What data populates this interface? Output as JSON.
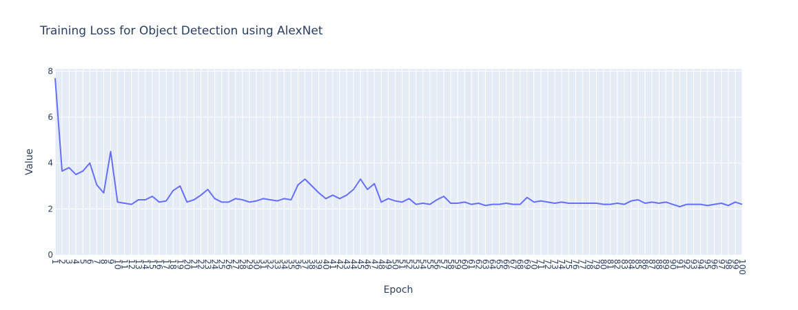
{
  "chart_data": {
    "type": "line",
    "title": "Training Loss for Object Detection using AlexNet",
    "xlabel": "Epoch",
    "ylabel": "Value",
    "xlim": [
      1,
      100
    ],
    "ylim": [
      0,
      8.1
    ],
    "y_ticks": [
      0,
      2,
      4,
      6,
      8
    ],
    "grid": true,
    "legend": "none",
    "colors": {
      "plot_background": "#e5ecf6",
      "grid": "#ffffff",
      "line": "#636efa",
      "text": "#2a3f5f"
    },
    "x": [
      1,
      2,
      3,
      4,
      5,
      6,
      7,
      8,
      9,
      10,
      11,
      12,
      13,
      14,
      15,
      16,
      17,
      18,
      19,
      20,
      21,
      22,
      23,
      24,
      25,
      26,
      27,
      28,
      29,
      30,
      31,
      32,
      33,
      34,
      35,
      36,
      37,
      38,
      39,
      40,
      41,
      42,
      43,
      44,
      45,
      46,
      47,
      48,
      49,
      50,
      51,
      52,
      53,
      54,
      55,
      56,
      57,
      58,
      59,
      60,
      61,
      62,
      63,
      64,
      65,
      66,
      67,
      68,
      69,
      70,
      71,
      72,
      73,
      74,
      75,
      76,
      77,
      78,
      79,
      80,
      81,
      82,
      83,
      84,
      85,
      86,
      87,
      88,
      89,
      90,
      91,
      92,
      93,
      94,
      95,
      96,
      97,
      98,
      99,
      100
    ],
    "series": [
      {
        "values": [
          7.7,
          3.65,
          3.8,
          3.5,
          3.65,
          4.0,
          3.05,
          2.7,
          4.5,
          2.3,
          2.25,
          2.2,
          2.4,
          2.4,
          2.55,
          2.3,
          2.35,
          2.8,
          3.0,
          2.3,
          2.4,
          2.6,
          2.85,
          2.45,
          2.3,
          2.3,
          2.45,
          2.4,
          2.3,
          2.35,
          2.45,
          2.4,
          2.35,
          2.45,
          2.4,
          3.05,
          3.3,
          3.0,
          2.7,
          2.45,
          2.6,
          2.45,
          2.6,
          2.85,
          3.3,
          2.85,
          3.1,
          2.3,
          2.45,
          2.35,
          2.3,
          2.45,
          2.2,
          2.25,
          2.2,
          2.4,
          2.55,
          2.25,
          2.25,
          2.3,
          2.2,
          2.25,
          2.15,
          2.2,
          2.2,
          2.25,
          2.2,
          2.2,
          2.5,
          2.3,
          2.35,
          2.3,
          2.25,
          2.3,
          2.25,
          2.25,
          2.25,
          2.25,
          2.25,
          2.2,
          2.2,
          2.25,
          2.2,
          2.35,
          2.4,
          2.25,
          2.3,
          2.25,
          2.3,
          2.2,
          2.1,
          2.2,
          2.2,
          2.2,
          2.15,
          2.2,
          2.25,
          2.15,
          2.3,
          2.2
        ]
      }
    ]
  }
}
